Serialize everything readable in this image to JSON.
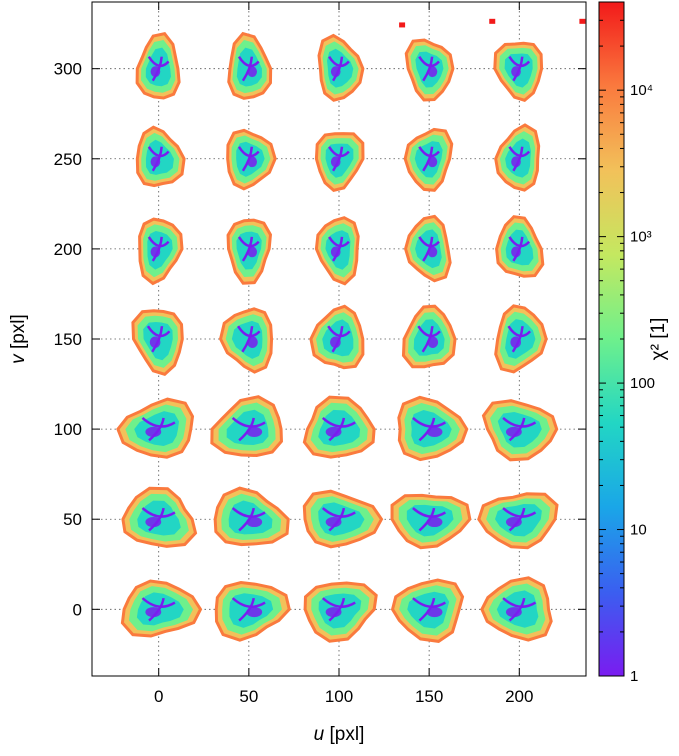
{
  "chart_data": {
    "type": "heatmap",
    "title": "",
    "xlabel": {
      "italic": "u",
      "unit": " [pxl]"
    },
    "ylabel": {
      "italic": "v",
      "unit": " [pxl]"
    },
    "xlim": [
      -37,
      237
    ],
    "ylim": [
      -37,
      337
    ],
    "x_ticks": [
      0,
      50,
      100,
      150,
      200
    ],
    "y_ticks": [
      0,
      50,
      100,
      150,
      200,
      250,
      300
    ],
    "grid": true,
    "colorbar": {
      "scale": "log",
      "range": [
        1,
        40000
      ],
      "label": "χ² [1]",
      "ticks": [
        {
          "value": 1,
          "label": "1"
        },
        {
          "value": 10,
          "label": "10"
        },
        {
          "value": 100,
          "label": "100"
        },
        {
          "value": 1000,
          "label": "10³"
        },
        {
          "value": 10000,
          "label": "10⁴"
        }
      ],
      "colors": [
        "#7a1cf0",
        "#3a5ff0",
        "#1aa6e8",
        "#22d6c4",
        "#6ef08c",
        "#c4e860",
        "#f2c15a",
        "#fa7a3e",
        "#f21a1a"
      ]
    },
    "blob_centers_u": [
      0,
      50,
      100,
      150,
      200
    ],
    "blob_centers_v": [
      0,
      50,
      100,
      150,
      200,
      250,
      300
    ],
    "outlier_points": [
      {
        "u": 135,
        "v": 324
      },
      {
        "u": 185,
        "v": 326
      },
      {
        "u": 235,
        "v": 326
      }
    ]
  }
}
